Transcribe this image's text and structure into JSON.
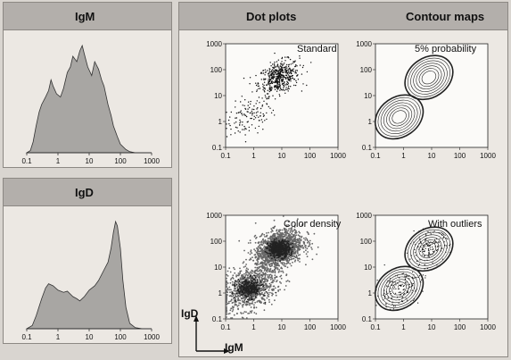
{
  "panels": {
    "igm_header": "IgM",
    "igd_header": "IgD",
    "dot_plots_header": "Dot plots",
    "contour_maps_header": "Contour maps"
  },
  "axis_labels": {
    "x": "IgM",
    "y": "IgD"
  },
  "chart_data": [
    {
      "id": "igm_hist",
      "type": "area",
      "title": "IgM",
      "xscale": "log",
      "xlim": [
        0.1,
        1000
      ],
      "x_ticks": [
        "0.1",
        "1",
        "10",
        "100",
        "1000"
      ],
      "x": [
        0.1,
        0.13,
        0.16,
        0.2,
        0.25,
        0.3,
        0.4,
        0.5,
        0.6,
        0.7,
        0.9,
        1.2,
        1.5,
        2,
        2.5,
        3,
        4,
        5,
        6,
        7,
        9,
        12,
        15,
        20,
        25,
        30,
        40,
        50,
        60,
        80,
        100,
        150,
        200,
        300,
        500,
        1000
      ],
      "values": [
        0,
        2,
        10,
        25,
        38,
        45,
        52,
        58,
        68,
        62,
        55,
        52,
        60,
        75,
        80,
        90,
        85,
        95,
        100,
        92,
        80,
        72,
        85,
        78,
        68,
        62,
        45,
        35,
        25,
        15,
        8,
        3,
        1,
        0,
        0,
        0
      ]
    },
    {
      "id": "igd_hist",
      "type": "area",
      "title": "IgD",
      "xscale": "log",
      "xlim": [
        0.1,
        1000
      ],
      "x_ticks": [
        "0.1",
        "1",
        "10",
        "100",
        "1000"
      ],
      "x": [
        0.1,
        0.15,
        0.2,
        0.3,
        0.4,
        0.5,
        0.7,
        1,
        1.5,
        2,
        3,
        4,
        5,
        7,
        10,
        15,
        20,
        30,
        40,
        50,
        60,
        70,
        80,
        100,
        120,
        150,
        200,
        300,
        500,
        1000
      ],
      "values": [
        0,
        3,
        12,
        28,
        38,
        42,
        40,
        36,
        34,
        35,
        30,
        28,
        26,
        30,
        36,
        40,
        45,
        55,
        62,
        75,
        90,
        100,
        96,
        75,
        45,
        20,
        5,
        1,
        0,
        0
      ]
    },
    {
      "id": "standard",
      "type": "scatter",
      "title": "Standard",
      "xscale": "log",
      "yscale": "log",
      "xlim": [
        0.1,
        1000
      ],
      "ylim": [
        0.1,
        1000
      ],
      "x_ticks": [
        "0.1",
        "1",
        "10",
        "100",
        "1000"
      ],
      "y_ticks": [
        "0.1",
        "1",
        "10",
        "100",
        "1000"
      ],
      "clusters": [
        {
          "x": 0.7,
          "y": 1.5,
          "spread": 0.35,
          "n": 120
        },
        {
          "x": 8,
          "y": 50,
          "spread": 0.3,
          "n": 500
        }
      ]
    },
    {
      "id": "probability",
      "type": "scatter",
      "title": "5% probability",
      "xscale": "log",
      "yscale": "log",
      "xlim": [
        0.1,
        1000
      ],
      "ylim": [
        0.1,
        1000
      ],
      "x_ticks": [
        "0.1",
        "1",
        "10",
        "100",
        "1000"
      ],
      "y_ticks": [
        "0.1",
        "1",
        "10",
        "100",
        "1000"
      ],
      "clusters": [
        {
          "x": 0.7,
          "y": 1.5,
          "spread": 0.35
        },
        {
          "x": 8,
          "y": 50,
          "spread": 0.3
        }
      ]
    },
    {
      "id": "color_density",
      "type": "scatter",
      "title": "Color density",
      "xscale": "log",
      "yscale": "log",
      "xlim": [
        0.1,
        1000
      ],
      "ylim": [
        0.1,
        1000
      ],
      "x_ticks": [
        "0.1",
        "1",
        "10",
        "100",
        "1000"
      ],
      "y_ticks": [
        "0.1",
        "1",
        "10",
        "100",
        "1000"
      ],
      "clusters": [
        {
          "x": 0.7,
          "y": 1.5,
          "spread": 0.4,
          "n": 900
        },
        {
          "x": 8,
          "y": 50,
          "spread": 0.35,
          "n": 1600
        }
      ]
    },
    {
      "id": "outliers",
      "type": "scatter",
      "title": "With outliers",
      "xscale": "log",
      "yscale": "log",
      "xlim": [
        0.1,
        1000
      ],
      "ylim": [
        0.1,
        1000
      ],
      "x_ticks": [
        "0.1",
        "1",
        "10",
        "100",
        "1000"
      ],
      "y_ticks": [
        "0.1",
        "1",
        "10",
        "100",
        "1000"
      ],
      "clusters": [
        {
          "x": 0.7,
          "y": 1.5,
          "spread": 0.35,
          "n": 150
        },
        {
          "x": 8,
          "y": 50,
          "spread": 0.3,
          "n": 150
        }
      ]
    }
  ]
}
